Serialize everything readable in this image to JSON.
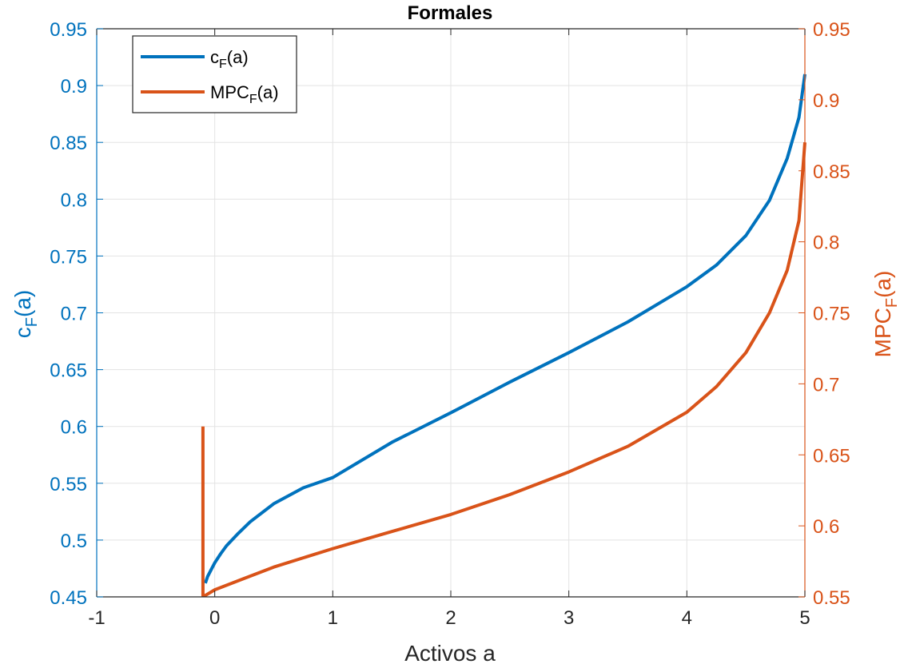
{
  "chart_data": {
    "type": "line",
    "title": "Formales",
    "xlabel": "Activos a",
    "ylabel_left": {
      "main": "c",
      "sub": "F",
      "tail": "(a)"
    },
    "ylabel_right": {
      "main": "MPC",
      "sub": "F",
      "tail": "(a)"
    },
    "xlim": [
      -1,
      5
    ],
    "xticks": [
      -1,
      0,
      1,
      2,
      3,
      4,
      5
    ],
    "xtick_labels": [
      "-1",
      "0",
      "1",
      "2",
      "3",
      "4",
      "5"
    ],
    "ylim_left": [
      0.45,
      0.95
    ],
    "yticks_left": [
      0.45,
      0.5,
      0.55,
      0.6,
      0.65,
      0.7,
      0.75,
      0.8,
      0.85,
      0.9,
      0.95
    ],
    "ytick_labels_left": [
      "0.45",
      "0.5",
      "0.55",
      "0.6",
      "0.65",
      "0.7",
      "0.75",
      "0.8",
      "0.85",
      "0.9",
      "0.95"
    ],
    "ylim_right": [
      0.55,
      0.95
    ],
    "yticks_right": [
      0.55,
      0.6,
      0.65,
      0.7,
      0.75,
      0.8,
      0.85,
      0.9,
      0.95
    ],
    "ytick_labels_right": [
      "0.55",
      "0.6",
      "0.65",
      "0.7",
      "0.75",
      "0.8",
      "0.85",
      "0.9",
      "0.95"
    ],
    "grid": true,
    "legend_position": "top-left",
    "colors": {
      "left": "#0072BD",
      "right": "#D95319",
      "grid": "#E3E3E3",
      "axis": "#262626"
    },
    "series": [
      {
        "name": "c_F(a)",
        "label": {
          "main": "c",
          "sub": "F",
          "tail": "(a)"
        },
        "axis": "left",
        "x": [
          -0.08,
          -0.06,
          -0.03,
          0.0,
          0.05,
          0.1,
          0.2,
          0.3,
          0.5,
          0.75,
          1.0,
          1.5,
          2.0,
          2.5,
          3.0,
          3.5,
          4.0,
          4.25,
          4.5,
          4.7,
          4.85,
          4.95,
          5.0
        ],
        "y": [
          0.462,
          0.468,
          0.474,
          0.48,
          0.488,
          0.495,
          0.506,
          0.516,
          0.532,
          0.546,
          0.555,
          0.586,
          0.612,
          0.639,
          0.665,
          0.692,
          0.723,
          0.742,
          0.768,
          0.799,
          0.836,
          0.872,
          0.91
        ]
      },
      {
        "name": "MPC_F(a)",
        "label": {
          "main": "MPC",
          "sub": "F",
          "tail": "(a)"
        },
        "axis": "right",
        "x": [
          -0.1,
          -0.1,
          -0.08,
          0.0,
          0.25,
          0.5,
          1.0,
          1.5,
          2.0,
          2.5,
          3.0,
          3.5,
          4.0,
          4.25,
          4.5,
          4.7,
          4.85,
          4.95,
          5.0
        ],
        "y": [
          0.67,
          0.551,
          0.551,
          0.555,
          0.563,
          0.571,
          0.584,
          0.596,
          0.608,
          0.622,
          0.638,
          0.656,
          0.68,
          0.698,
          0.722,
          0.75,
          0.78,
          0.815,
          0.87
        ]
      }
    ]
  }
}
